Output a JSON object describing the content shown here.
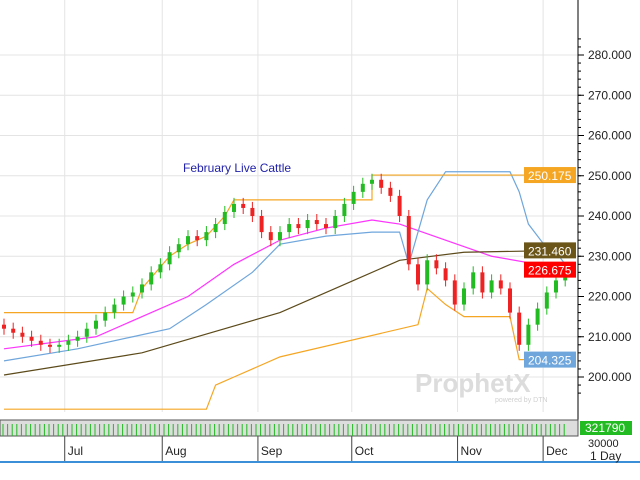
{
  "chart_data": {
    "type": "candlestick",
    "title": "February Live Cattle",
    "ylim": [
      195,
      285
    ],
    "y_ticks": [
      "280.000",
      "270.000",
      "260.000",
      "250.000",
      "240.000",
      "230.000",
      "220.000",
      "210.000",
      "200.000"
    ],
    "month_ticks": [
      {
        "label": "Jul",
        "i": 6.6
      },
      {
        "label": "Aug",
        "i": 17.2
      },
      {
        "label": "Sep",
        "i": 27.6
      },
      {
        "label": "Oct",
        "i": 37.8
      },
      {
        "label": "Nov",
        "i": 49.3
      },
      {
        "label": "Dec",
        "i": 58.6
      }
    ],
    "closes": [
      212,
      211,
      210,
      209,
      208,
      207.5,
      208,
      209,
      210,
      212,
      214,
      216,
      218,
      220,
      221,
      223,
      226,
      228,
      231,
      233,
      235,
      234,
      236,
      238,
      241,
      243,
      242,
      240,
      236,
      234,
      236,
      238,
      237,
      239,
      238,
      237,
      240,
      243,
      246,
      248,
      249,
      247,
      245,
      240,
      228,
      223,
      229,
      227,
      224,
      218,
      222,
      226,
      221,
      224,
      222,
      216,
      208,
      213,
      217,
      221,
      224,
      226.675
    ],
    "lines": [
      {
        "color": "#ff33ff",
        "points": [
          [
            0,
            207
          ],
          [
            10,
            210
          ],
          [
            20,
            220
          ],
          [
            25,
            228
          ],
          [
            30,
            234
          ],
          [
            35,
            237
          ],
          [
            40,
            239
          ],
          [
            43,
            238
          ],
          [
            48,
            234
          ],
          [
            53,
            230
          ],
          [
            58,
            228
          ],
          [
            61,
            227
          ]
        ]
      },
      {
        "color": "#5c4a1a",
        "points": [
          [
            0,
            200.5
          ],
          [
            15,
            206
          ],
          [
            30,
            216
          ],
          [
            38,
            224
          ],
          [
            43,
            229
          ],
          [
            50,
            231
          ],
          [
            61,
            231.46
          ]
        ]
      },
      {
        "color": "#6fa6dc",
        "points": [
          [
            0,
            204
          ],
          [
            8,
            207
          ],
          [
            14,
            210
          ],
          [
            18,
            212
          ],
          [
            22,
            218
          ],
          [
            27,
            226
          ],
          [
            30,
            233
          ],
          [
            35,
            235
          ],
          [
            40,
            236
          ],
          [
            43,
            236
          ],
          [
            44,
            228
          ],
          [
            46,
            244
          ],
          [
            48,
            251
          ],
          [
            55,
            251
          ],
          [
            56,
            246
          ],
          [
            57,
            238
          ],
          [
            59,
            232
          ],
          [
            60,
            231
          ],
          [
            61,
            228
          ]
        ]
      },
      {
        "color": "#f5a623",
        "points": [
          [
            0,
            216
          ],
          [
            14,
            216
          ],
          [
            15,
            222
          ],
          [
            18,
            230
          ],
          [
            20,
            233
          ],
          [
            22,
            235
          ],
          [
            24,
            240
          ],
          [
            25,
            244
          ],
          [
            40,
            244
          ],
          [
            40,
            250.175
          ],
          [
            61,
            250.175
          ]
        ]
      },
      {
        "color": "#f5a623",
        "points": [
          [
            0,
            192
          ],
          [
            22,
            192
          ],
          [
            23,
            198
          ],
          [
            25,
            200
          ],
          [
            30,
            205
          ],
          [
            45,
            213
          ],
          [
            46,
            222
          ],
          [
            48,
            218
          ],
          [
            50,
            215
          ],
          [
            55,
            215
          ],
          [
            56,
            204.325
          ],
          [
            61,
            204.325
          ]
        ]
      }
    ],
    "price_labels": [
      {
        "text": "250.175",
        "value": 250.175,
        "bg": "#f5a623"
      },
      {
        "text": "231.460",
        "value": 231.46,
        "bg": "#6b5518"
      },
      {
        "text": "226.675",
        "value": 226.675,
        "bg": "#ff0000"
      },
      {
        "text": "204.325",
        "value": 204.325,
        "bg": "#6fa6dc"
      }
    ],
    "volume_label": "321790",
    "volume_axis": "30000",
    "interval": "1 Day",
    "up_color": "#22bb22",
    "down_color": "#ee2222"
  },
  "watermark": "ProphetX powered by DTN"
}
